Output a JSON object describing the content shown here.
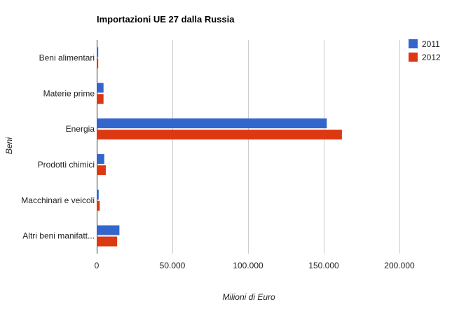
{
  "chart_data": {
    "type": "bar",
    "orientation": "horizontal",
    "title": "Importazioni UE 27 dalla Russia",
    "xlabel": "Milioni di Euro",
    "ylabel": "Beni",
    "categories": [
      "Beni alimentari",
      "Materie prime",
      "Energia",
      "Prodotti chimici",
      "Macchinari e veicoli",
      "Altri beni manifatt..."
    ],
    "series": [
      {
        "name": "2011",
        "color": "#3366cc",
        "values": [
          1000,
          4500,
          152000,
          5000,
          1300,
          15000
        ]
      },
      {
        "name": "2012",
        "color": "#dc3912",
        "values": [
          1000,
          4500,
          162000,
          6000,
          2000,
          13500
        ]
      }
    ],
    "xlim": [
      0,
      200000
    ],
    "xticks": [
      0,
      50000,
      100000,
      150000,
      200000
    ],
    "xtick_labels": [
      "0",
      "50.000",
      "100.000",
      "150.000",
      "200.000"
    ],
    "grid": true,
    "legend": "top-right"
  }
}
